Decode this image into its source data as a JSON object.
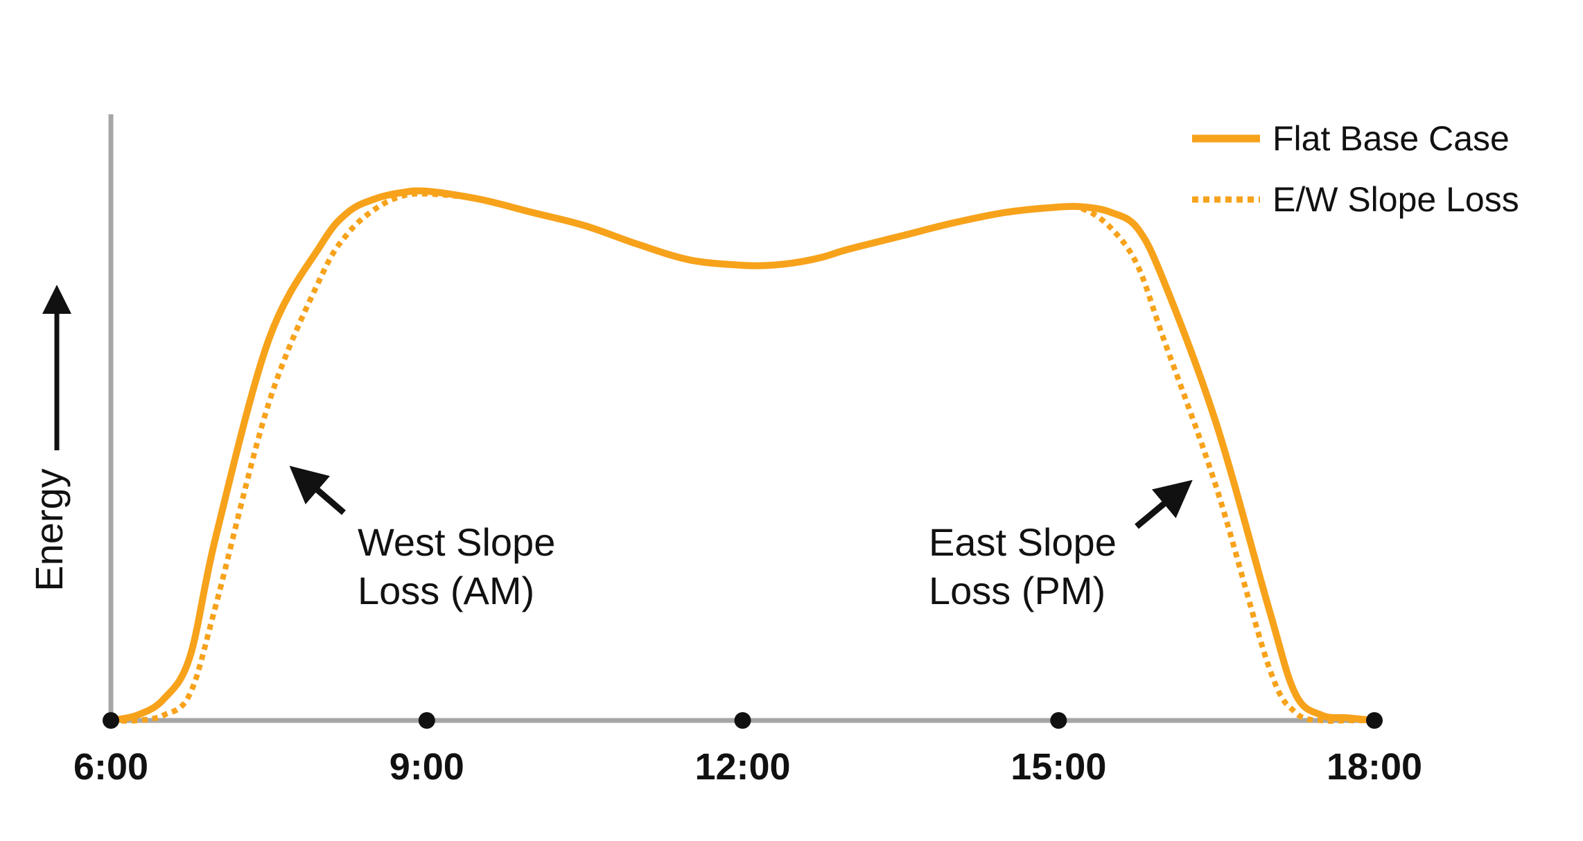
{
  "chart_data": {
    "type": "line",
    "title": "",
    "xlabel": "",
    "ylabel": "Energy",
    "x_ticks": [
      "6:00",
      "9:00",
      "12:00",
      "15:00",
      "18:00"
    ],
    "x_tick_values": [
      6,
      9,
      12,
      15,
      18
    ],
    "xlim": [
      6,
      18
    ],
    "ylim": [
      0,
      1
    ],
    "grid": false,
    "legend_position": "top-right",
    "colors": {
      "series": "#f7a21b",
      "axis": "#a6a6a6",
      "text": "#111111",
      "arrow": "#111111"
    },
    "series": [
      {
        "name": "Flat Base Case",
        "style": "solid",
        "x": [
          6.0,
          6.25,
          6.5,
          6.75,
          7.0,
          7.5,
          8.0,
          8.25,
          8.5,
          8.75,
          9.0,
          9.5,
          10.0,
          10.5,
          11.0,
          11.5,
          12.0,
          12.25,
          12.5,
          12.75,
          13.0,
          13.5,
          14.0,
          14.5,
          15.0,
          15.25,
          15.5,
          15.75,
          16.0,
          16.5,
          17.0,
          17.25,
          17.5,
          17.75,
          18.0
        ],
        "values": [
          0.0,
          0.01,
          0.04,
          0.12,
          0.35,
          0.72,
          0.9,
          0.96,
          0.985,
          0.997,
          1.0,
          0.985,
          0.96,
          0.935,
          0.9,
          0.87,
          0.86,
          0.86,
          0.865,
          0.875,
          0.89,
          0.915,
          0.94,
          0.96,
          0.97,
          0.97,
          0.96,
          0.93,
          0.83,
          0.56,
          0.21,
          0.05,
          0.01,
          0.005,
          0.0
        ]
      },
      {
        "name": "E/W Slope Loss",
        "style": "dotted",
        "x": [
          6.0,
          6.25,
          6.5,
          6.75,
          7.0,
          7.5,
          8.0,
          8.25,
          8.5,
          8.75,
          9.0,
          9.5,
          10.0,
          10.5,
          11.0,
          11.5,
          12.0,
          12.25,
          12.5,
          12.75,
          13.0,
          13.5,
          14.0,
          14.5,
          15.0,
          15.25,
          15.5,
          15.75,
          16.0,
          16.5,
          17.0,
          17.25,
          17.5,
          17.75,
          18.0
        ],
        "values": [
          0.0,
          0.0,
          0.01,
          0.05,
          0.22,
          0.6,
          0.84,
          0.92,
          0.965,
          0.99,
          0.995,
          0.985,
          0.96,
          0.935,
          0.9,
          0.87,
          0.86,
          0.86,
          0.865,
          0.875,
          0.89,
          0.915,
          0.94,
          0.96,
          0.97,
          0.965,
          0.93,
          0.86,
          0.72,
          0.44,
          0.1,
          0.015,
          0.0,
          0.0,
          0.0
        ]
      }
    ],
    "annotations": [
      {
        "lines": [
          "West Slope",
          "Loss (AM)"
        ],
        "points_to_x": 7.62
      },
      {
        "lines": [
          "East Slope",
          "Loss (PM)"
        ],
        "points_to_x": 16.38
      }
    ]
  }
}
